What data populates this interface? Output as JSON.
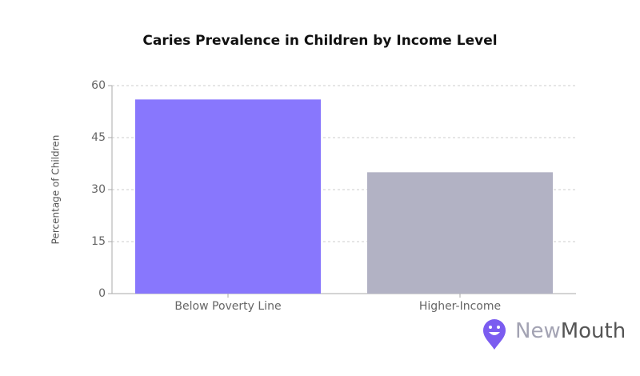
{
  "chart_data": {
    "type": "bar",
    "title": "Caries Prevalence in Children by Income Level",
    "ylabel": "Percentage of Children",
    "categories": [
      "Below Poverty Line",
      "Higher-Income"
    ],
    "values": [
      56,
      35
    ],
    "colors": [
      "#8877fd",
      "#b2b2c4"
    ],
    "ylim": [
      0,
      60
    ],
    "yticks": [
      0,
      15,
      30,
      45,
      60
    ],
    "grid": true
  },
  "logo": [
    "New",
    "Mouth"
  ]
}
